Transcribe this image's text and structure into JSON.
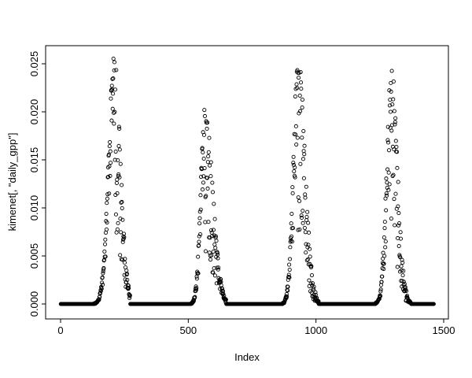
{
  "figure": {
    "background": "#ffffff",
    "foreground": "#000000"
  },
  "chart_data": {
    "type": "scatter",
    "title": "",
    "xlabel": "Index",
    "ylabel": "kimenet[, \"daily_gpp\"]",
    "legend": "none",
    "grid": "off",
    "marker": "open-circle",
    "marker_color": "#000000",
    "xlim": [
      -58,
      1518
    ],
    "ylim": [
      -0.0016,
      0.0268
    ],
    "x_ticks": [
      0,
      500,
      1000,
      1500
    ],
    "x_tick_labels": [
      "0",
      "500",
      "1000",
      "1500"
    ],
    "y_ticks": [
      0,
      0.005,
      0.01,
      0.015,
      0.02,
      0.025
    ],
    "y_tick_labels": [
      "0.000",
      "0.005",
      "0.010",
      "0.015",
      "0.020",
      "0.025"
    ],
    "n_points": 1461,
    "series": [
      {
        "name": "daily_gpp",
        "description": "Daily GPP simulation output: four annual seasonal peaks separated by zero-valued dormant periods",
        "segments": [
          {
            "kind": "flat",
            "from": 1,
            "to": 130,
            "value": 0
          },
          {
            "kind": "peak",
            "from": 130,
            "to": 272,
            "peak": 210,
            "max": 0.0256,
            "sigma_rise": 22,
            "sigma_fall": 24,
            "noise_rise": 0.4,
            "noise_fall": 0.7
          },
          {
            "kind": "flat",
            "from": 273,
            "to": 508,
            "value": 0
          },
          {
            "kind": "peak",
            "from": 508,
            "to": 648,
            "peak": 565,
            "max": 0.0206,
            "sigma_rise": 16,
            "sigma_fall": 30,
            "noise_rise": 0.4,
            "noise_fall": 0.75
          },
          {
            "kind": "flat",
            "from": 649,
            "to": 866,
            "value": 0
          },
          {
            "kind": "peak",
            "from": 866,
            "to": 1010,
            "peak": 930,
            "max": 0.0257,
            "sigma_rise": 18,
            "sigma_fall": 27,
            "noise_rise": 0.45,
            "noise_fall": 0.75
          },
          {
            "kind": "flat",
            "from": 1011,
            "to": 1232,
            "value": 0
          },
          {
            "kind": "peak",
            "from": 1232,
            "to": 1372,
            "peak": 1295,
            "max": 0.0247,
            "sigma_rise": 18,
            "sigma_fall": 24,
            "noise_rise": 0.45,
            "noise_fall": 0.8
          },
          {
            "kind": "flat",
            "from": 1373,
            "to": 1461,
            "value": 0
          }
        ]
      }
    ]
  }
}
